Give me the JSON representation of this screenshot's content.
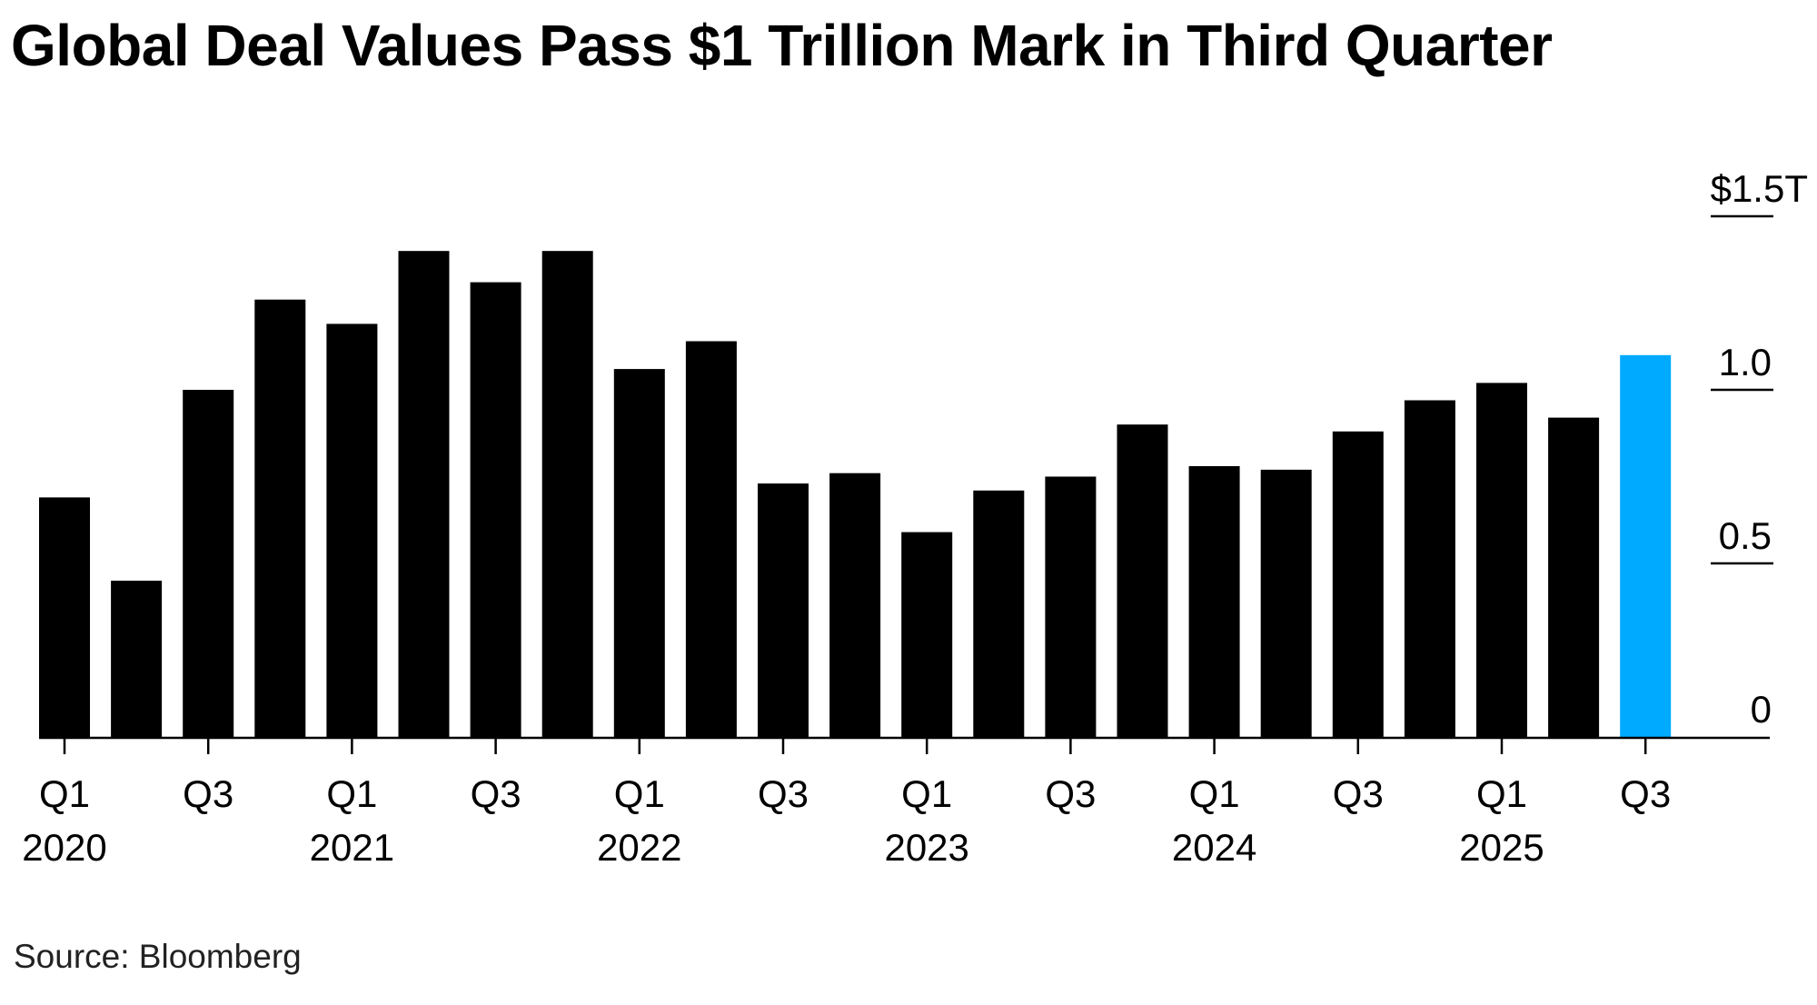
{
  "title": "Global Deal Values Pass $1 Trillion Mark in Third Quarter",
  "source": "Source: Bloomberg",
  "colors": {
    "bar": "#000000",
    "highlight": "#00AAFF",
    "axis": "#000000"
  },
  "chart_data": {
    "type": "bar",
    "title": "Global Deal Values Pass $1 Trillion Mark in Third Quarter",
    "xlabel": "",
    "ylabel": "",
    "unit": "trillion USD",
    "ylim": [
      0,
      1.5
    ],
    "yticks": [
      {
        "value": 0,
        "label": "0"
      },
      {
        "value": 0.5,
        "label": "0.5"
      },
      {
        "value": 1.0,
        "label": "1.0"
      },
      {
        "value": 1.5,
        "label": "$1.5T"
      }
    ],
    "y_axis_position": "right",
    "grid": false,
    "legend": null,
    "categories": [
      "Q1 2020",
      "Q2 2020",
      "Q3 2020",
      "Q4 2020",
      "Q1 2021",
      "Q2 2021",
      "Q3 2021",
      "Q4 2021",
      "Q1 2022",
      "Q2 2022",
      "Q3 2022",
      "Q4 2022",
      "Q1 2023",
      "Q2 2023",
      "Q3 2023",
      "Q4 2023",
      "Q1 2024",
      "Q2 2024",
      "Q3 2024",
      "Q4 2024",
      "Q1 2025",
      "Q2 2025",
      "Q3 2025"
    ],
    "values": [
      0.69,
      0.45,
      1.0,
      1.26,
      1.19,
      1.4,
      1.31,
      1.4,
      1.06,
      1.14,
      0.73,
      0.76,
      0.59,
      0.71,
      0.75,
      0.9,
      0.78,
      0.77,
      0.88,
      0.97,
      1.02,
      0.92,
      1.1
    ],
    "highlight_index": 22,
    "xticks": [
      {
        "index": 0,
        "quarter": "Q1",
        "year": "2020"
      },
      {
        "index": 2,
        "quarter": "Q3",
        "year": ""
      },
      {
        "index": 4,
        "quarter": "Q1",
        "year": "2021"
      },
      {
        "index": 6,
        "quarter": "Q3",
        "year": ""
      },
      {
        "index": 8,
        "quarter": "Q1",
        "year": "2022"
      },
      {
        "index": 10,
        "quarter": "Q3",
        "year": ""
      },
      {
        "index": 12,
        "quarter": "Q1",
        "year": "2023"
      },
      {
        "index": 14,
        "quarter": "Q3",
        "year": ""
      },
      {
        "index": 16,
        "quarter": "Q1",
        "year": "2024"
      },
      {
        "index": 18,
        "quarter": "Q3",
        "year": ""
      },
      {
        "index": 20,
        "quarter": "Q1",
        "year": "2025"
      },
      {
        "index": 22,
        "quarter": "Q3",
        "year": ""
      }
    ]
  }
}
